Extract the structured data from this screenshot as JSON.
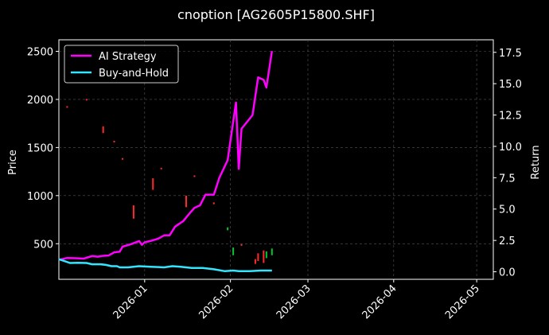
{
  "chart_data": {
    "type": "line",
    "title": "cnoption [AG2605P15800.SHF]",
    "xlabel": "",
    "ylabel_left": "Price",
    "ylabel_right": "Return",
    "x_ticks": [
      "2026-01",
      "2026-02",
      "2026-03",
      "2026-04",
      "2026-05"
    ],
    "x_range": [
      "2025-12-01",
      "2026-05-07"
    ],
    "ylim_left": [
      130,
      2620
    ],
    "yticks_left": [
      500,
      1000,
      1500,
      2000,
      2500
    ],
    "ylim_right": [
      -0.6,
      18.5
    ],
    "yticks_right": [
      0.0,
      2.5,
      5.0,
      7.5,
      10.0,
      12.5,
      15.0,
      17.5
    ],
    "yticks_right_labels": [
      "0.0",
      "2.5",
      "5.0",
      "7.5",
      "10.0",
      "12.5",
      "15.0",
      "17.5"
    ],
    "grid": true,
    "legend_position": "top-left",
    "series": [
      {
        "name": "AI Strategy",
        "color": "#ff00ff",
        "axis": "right",
        "points": [
          [
            "2025-12-01",
            0.95
          ],
          [
            "2025-12-04",
            1.1
          ],
          [
            "2025-12-07",
            1.08
          ],
          [
            "2025-12-10",
            1.05
          ],
          [
            "2025-12-13",
            1.25
          ],
          [
            "2025-12-15",
            1.2
          ],
          [
            "2025-12-17",
            1.27
          ],
          [
            "2025-12-19",
            1.3
          ],
          [
            "2025-12-21",
            1.55
          ],
          [
            "2025-12-23",
            1.6
          ],
          [
            "2025-12-24",
            2.0
          ],
          [
            "2025-12-27",
            2.2
          ],
          [
            "2025-12-30",
            2.45
          ],
          [
            "2025-12-31",
            2.15
          ],
          [
            "2026-01-01",
            2.35
          ],
          [
            "2026-01-03",
            2.45
          ],
          [
            "2026-01-06",
            2.65
          ],
          [
            "2026-01-08",
            2.9
          ],
          [
            "2026-01-10",
            2.9
          ],
          [
            "2026-01-12",
            3.6
          ],
          [
            "2026-01-15",
            4.05
          ],
          [
            "2026-01-17",
            4.6
          ],
          [
            "2026-01-19",
            5.1
          ],
          [
            "2026-01-21",
            5.3
          ],
          [
            "2026-01-23",
            6.15
          ],
          [
            "2026-01-26",
            6.15
          ],
          [
            "2026-01-28",
            7.5
          ],
          [
            "2026-01-31",
            8.9
          ],
          [
            "2026-02-03",
            13.5
          ],
          [
            "2026-02-04",
            8.2
          ],
          [
            "2026-02-05",
            11.4
          ],
          [
            "2026-02-09",
            12.5
          ],
          [
            "2026-02-11",
            15.5
          ],
          [
            "2026-02-13",
            15.3
          ],
          [
            "2026-02-14",
            14.7
          ],
          [
            "2026-02-16",
            17.6
          ]
        ]
      },
      {
        "name": "Buy-and-Hold",
        "color": "#33e6ff",
        "axis": "right",
        "points": [
          [
            "2025-12-01",
            1.0
          ],
          [
            "2025-12-03",
            0.85
          ],
          [
            "2025-12-05",
            0.7
          ],
          [
            "2025-12-08",
            0.72
          ],
          [
            "2025-12-11",
            0.7
          ],
          [
            "2025-12-13",
            0.6
          ],
          [
            "2025-12-16",
            0.6
          ],
          [
            "2025-12-18",
            0.55
          ],
          [
            "2025-12-20",
            0.45
          ],
          [
            "2025-12-22",
            0.45
          ],
          [
            "2025-12-23",
            0.35
          ],
          [
            "2025-12-26",
            0.35
          ],
          [
            "2025-12-30",
            0.45
          ],
          [
            "2026-01-03",
            0.4
          ],
          [
            "2026-01-06",
            0.38
          ],
          [
            "2026-01-08",
            0.35
          ],
          [
            "2026-01-11",
            0.45
          ],
          [
            "2026-01-14",
            0.4
          ],
          [
            "2026-01-18",
            0.3
          ],
          [
            "2026-01-22",
            0.3
          ],
          [
            "2026-01-26",
            0.2
          ],
          [
            "2026-01-30",
            0.05
          ],
          [
            "2026-02-02",
            0.1
          ],
          [
            "2026-02-04",
            0.05
          ],
          [
            "2026-02-08",
            0.05
          ],
          [
            "2026-02-12",
            0.1
          ],
          [
            "2026-02-16",
            0.1
          ]
        ]
      }
    ],
    "candles": [
      {
        "date": "2025-12-04",
        "open": 1930,
        "close": 1920,
        "color": "#ff2a2a"
      },
      {
        "date": "2025-12-11",
        "open": 2005,
        "close": 1995,
        "color": "#ff2a2a"
      },
      {
        "date": "2025-12-17",
        "open": 1720,
        "close": 1650,
        "color": "#ff2a2a"
      },
      {
        "date": "2025-12-21",
        "open": 1570,
        "close": 1555,
        "color": "#ff2a2a"
      },
      {
        "date": "2025-12-24",
        "open": 1390,
        "close": 1380,
        "color": "#ff2a2a"
      },
      {
        "date": "2025-12-28",
        "open": 900,
        "close": 760,
        "color": "#ff2a2a"
      },
      {
        "date": "2026-01-04",
        "open": 1180,
        "close": 1060,
        "color": "#ff2a2a"
      },
      {
        "date": "2026-01-07",
        "open": 1290,
        "close": 1280,
        "color": "#ff2a2a"
      },
      {
        "date": "2026-01-16",
        "open": 1000,
        "close": 880,
        "color": "#ff2a2a"
      },
      {
        "date": "2026-01-19",
        "open": 1210,
        "close": 1195,
        "color": "#ff2a2a"
      },
      {
        "date": "2026-01-26",
        "open": 930,
        "close": 910,
        "color": "#ff2a2a"
      },
      {
        "date": "2026-01-31",
        "open": 640,
        "close": 670,
        "color": "#00c832"
      },
      {
        "date": "2026-02-02",
        "open": 380,
        "close": 460,
        "color": "#00c832"
      },
      {
        "date": "2026-02-05",
        "open": 495,
        "close": 485,
        "color": "#ff2a2a"
      },
      {
        "date": "2026-02-10",
        "open": 340,
        "close": 290,
        "color": "#ff2a2a"
      },
      {
        "date": "2026-02-11",
        "open": 400,
        "close": 320,
        "color": "#ff2a2a"
      },
      {
        "date": "2026-02-13",
        "open": 430,
        "close": 300,
        "color": "#ff2a2a"
      },
      {
        "date": "2026-02-14",
        "open": 350,
        "close": 420,
        "color": "#00c832"
      },
      {
        "date": "2026-02-16",
        "open": 380,
        "close": 450,
        "color": "#00c832"
      }
    ]
  }
}
